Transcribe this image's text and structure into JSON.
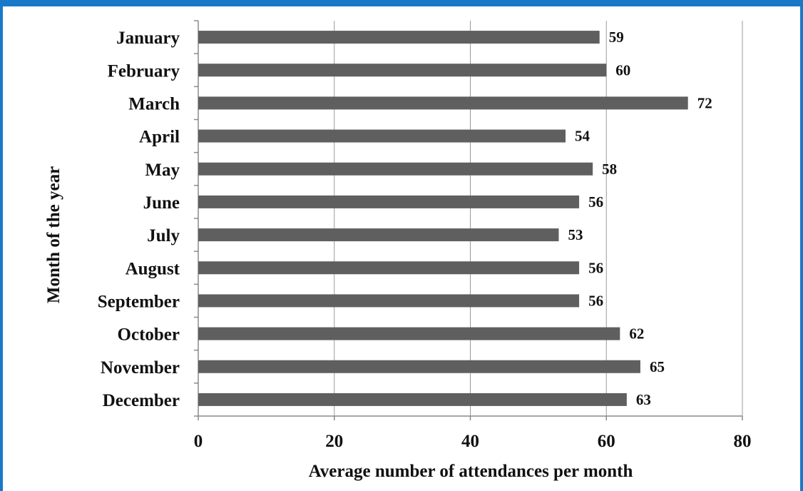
{
  "chart_data": {
    "type": "bar",
    "orientation": "horizontal",
    "categories": [
      "January",
      "February",
      "March",
      "April",
      "May",
      "June",
      "July",
      "August",
      "September",
      "October",
      "November",
      "December"
    ],
    "values": [
      59,
      60,
      72,
      54,
      58,
      56,
      53,
      56,
      56,
      62,
      65,
      63
    ],
    "title": "",
    "xlabel": "Average number of attendances per month",
    "ylabel": "Month of the year",
    "xlim": [
      0,
      80
    ],
    "xticks": [
      0,
      20,
      40,
      60,
      80
    ],
    "grid": true,
    "legend": "none",
    "colors": {
      "bar": "#5f5f5f",
      "grid": "#9a9a9a",
      "axis": "#8a8a8a",
      "frame": "#1a78c8"
    }
  }
}
